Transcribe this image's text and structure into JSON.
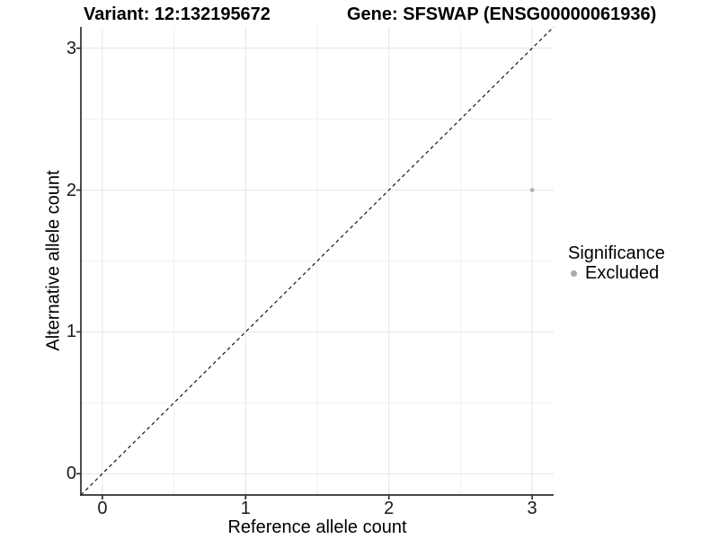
{
  "chart_data": {
    "type": "scatter",
    "titles": [
      "Variant: 12:132195672",
      "Gene: SFSWAP (ENSG00000061936)"
    ],
    "xlabel": "Reference allele count",
    "ylabel": "Alternative allele count",
    "xlim": [
      -0.15,
      3.15
    ],
    "ylim": [
      -0.15,
      3.15
    ],
    "x_ticks": [
      0,
      1,
      2,
      3
    ],
    "y_ticks": [
      0,
      1,
      2,
      3
    ],
    "x_minor_gridlines": [
      0.5,
      1.5,
      2.5
    ],
    "y_minor_gridlines": [
      0.5,
      1.5,
      2.5
    ],
    "grid": {
      "on": true,
      "major_color": "#e5e5e5",
      "minor_color": "#f0f0f0"
    },
    "axis_color": "#2e2e2e",
    "identity_line": {
      "slope": 1,
      "intercept": 0,
      "style": "dashed",
      "color": "#161616"
    },
    "points": [
      {
        "x": 3,
        "y": 2,
        "significance": "Excluded",
        "color": "#b2b2b2",
        "radius": 2.4
      }
    ],
    "legend": {
      "title": "Significance",
      "position": "right",
      "items": [
        {
          "label": "Excluded",
          "color": "#a9a9a9"
        }
      ]
    }
  }
}
